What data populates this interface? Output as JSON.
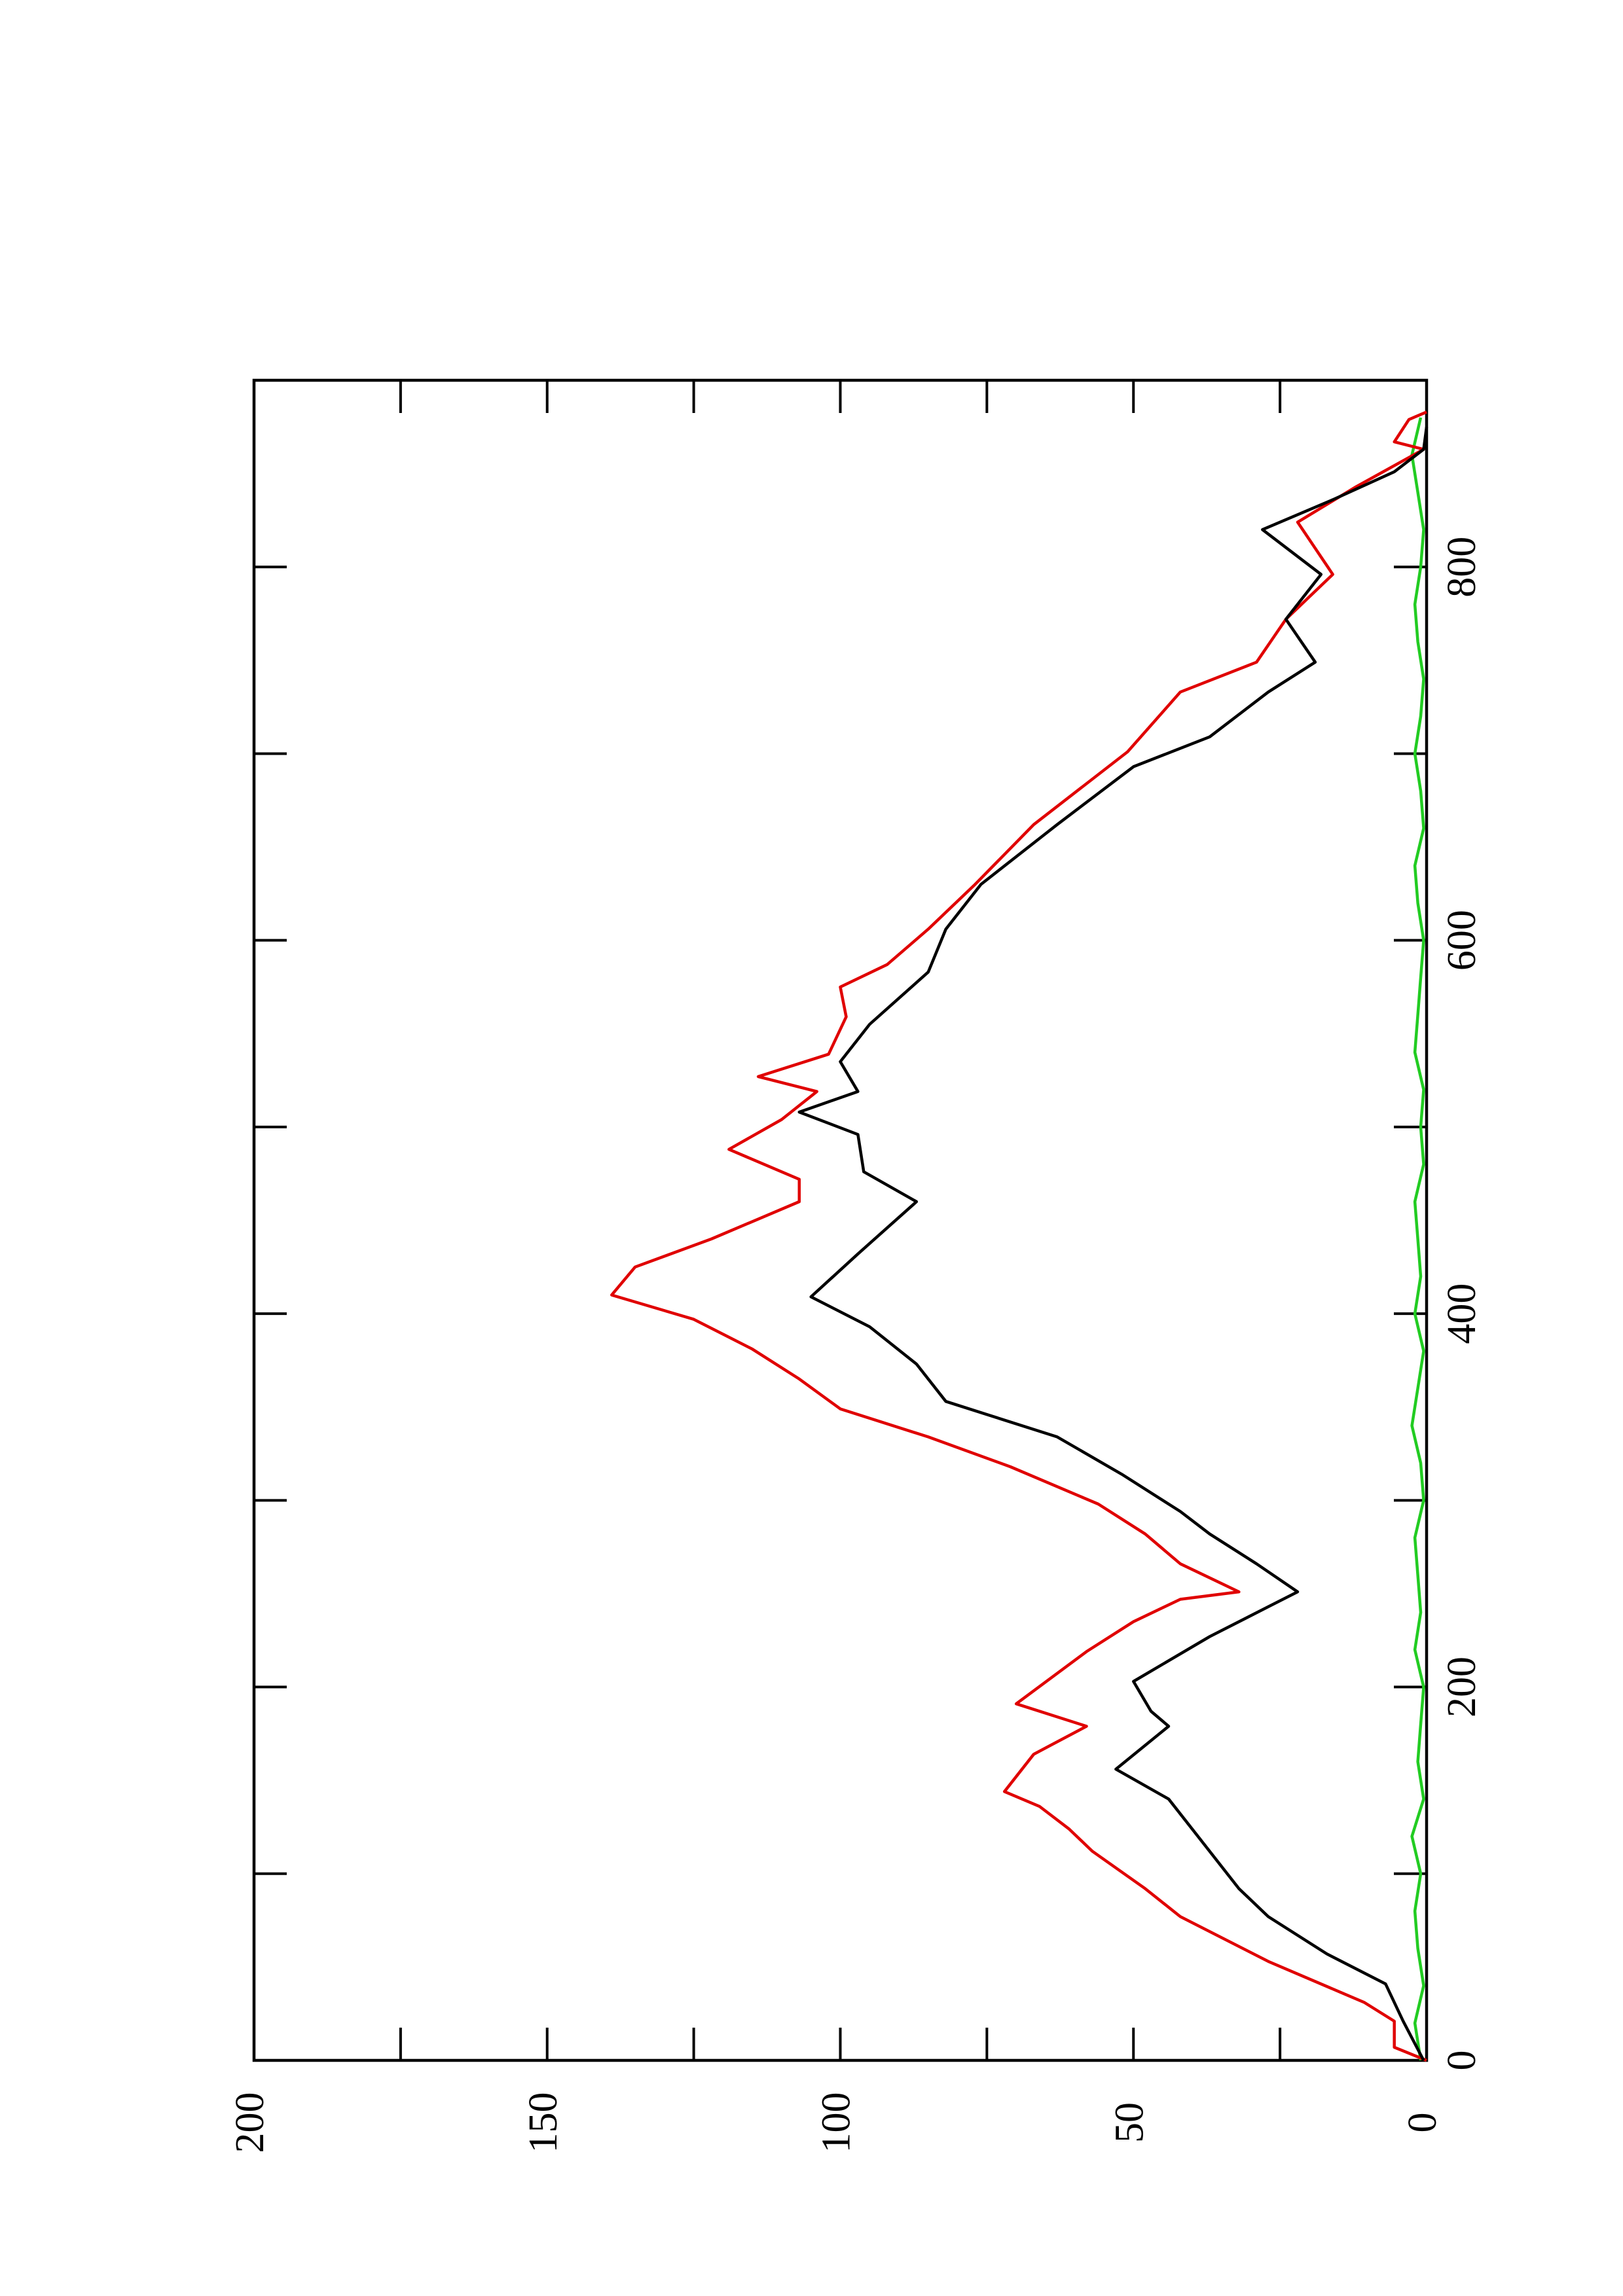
{
  "chart_data": {
    "type": "line",
    "xlim": [
      0,
      900
    ],
    "ylim": [
      0,
      200
    ],
    "xticks": [
      0,
      200,
      400,
      600,
      800
    ],
    "xminor_ticks": [
      100,
      300,
      500,
      700
    ],
    "yticks": [
      0,
      50,
      100,
      150,
      200
    ],
    "yminor_ticks": [
      25,
      75,
      125,
      175
    ],
    "series": [
      {
        "color": "#000000",
        "x": [
          0,
          21,
          41,
          57,
          77,
          92,
          116,
          140,
          156,
          179,
          187,
          203,
          227,
          243,
          251,
          266,
          282,
          294,
          314,
          334,
          353,
          373,
          393,
          409,
          432,
          460,
          476,
          496,
          508,
          519,
          535,
          555,
          583,
          606,
          630,
          662,
          693,
          709,
          733,
          749,
          772,
          796,
          820,
          836,
          851,
          863,
          875
        ],
        "values": [
          0.5,
          4,
          7,
          17,
          27,
          32,
          38,
          44,
          53,
          44,
          47,
          50,
          37,
          27,
          22,
          29,
          37,
          42,
          52,
          63,
          82,
          87,
          95,
          105,
          97,
          87,
          96,
          97,
          107,
          97,
          100,
          95,
          85,
          82,
          76,
          63,
          50,
          37,
          27,
          19,
          24,
          18,
          28,
          16,
          5.5,
          0.5,
          0
        ]
      },
      {
        "color": "#e00000",
        "x": [
          0,
          7,
          21,
          31,
          53,
          77,
          92,
          112,
          124,
          136,
          144,
          164,
          179,
          191,
          219,
          235,
          247,
          251,
          266,
          282,
          298,
          318,
          334,
          349,
          365,
          381,
          397,
          410,
          425,
          440,
          460,
          472,
          488,
          504,
          519,
          527,
          539,
          559,
          575,
          587,
          606,
          630,
          662,
          701,
          733,
          749,
          772,
          796,
          824,
          843,
          863,
          867,
          879,
          883
        ],
        "values": [
          0,
          5.5,
          5.5,
          10.6,
          27,
          42,
          48,
          57,
          61,
          66,
          72,
          67,
          58,
          70,
          58,
          50,
          42,
          32,
          42,
          48,
          56,
          71,
          85,
          100,
          107,
          115,
          125,
          139,
          135,
          122,
          107,
          107,
          119,
          110,
          104,
          114,
          102,
          99,
          100,
          92,
          85,
          77,
          67,
          51,
          42,
          29,
          24,
          16,
          22,
          12,
          0.5,
          5.5,
          3,
          0
        ]
      },
      {
        "color": "#22cc22",
        "x": [
          0,
          20,
          40,
          60,
          80,
          100,
          120,
          140,
          160,
          180,
          200,
          220,
          240,
          260,
          280,
          300,
          320,
          340,
          360,
          380,
          400,
          420,
          440,
          460,
          480,
          500,
          520,
          540,
          560,
          580,
          600,
          620,
          640,
          660,
          680,
          700,
          720,
          740,
          760,
          780,
          800,
          820,
          840,
          860,
          880
        ],
        "values": [
          1,
          2,
          0.5,
          1.5,
          2,
          1,
          2.5,
          0.5,
          1.5,
          1,
          0.5,
          2,
          1,
          1.5,
          2,
          0.5,
          1,
          2.5,
          1.5,
          0.5,
          2,
          1,
          1.5,
          2,
          0.5,
          1,
          0.5,
          2,
          1.5,
          1,
          0.5,
          1.5,
          2,
          0.5,
          1,
          2,
          1,
          0.5,
          1.5,
          2,
          1,
          0.5,
          1.5,
          2.5,
          1
        ]
      }
    ]
  }
}
